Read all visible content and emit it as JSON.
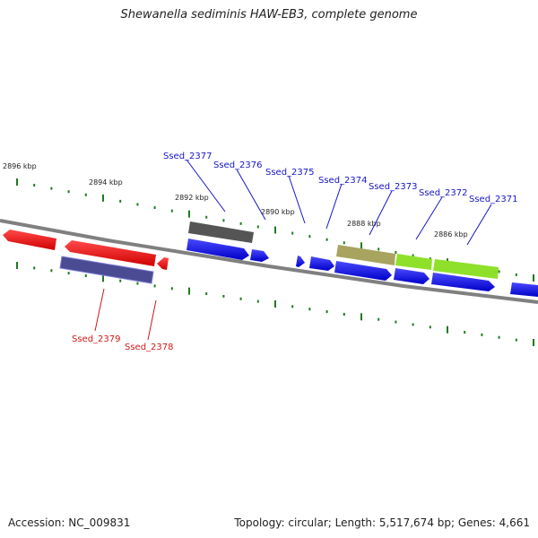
{
  "title": "Shewanella sediminis HAW-EB3, complete genome",
  "footer": {
    "accession": "Accession: NC_009831",
    "topology": "Topology: circular; Length: 5,517,674 bp; Genes: 4,661"
  },
  "colors": {
    "backbone": "#808080",
    "forward_gene": "#0a0ae6",
    "reverse_gene": "#ee1010",
    "label_forward": "#1515c8",
    "label_reverse": "#d01818",
    "tick": "#1f7a1f"
  },
  "kbp_labels": [
    "2896 kbp",
    "2894 kbp",
    "2892 kbp",
    "2890 kbp",
    "2888 kbp",
    "2886 kbp"
  ],
  "gene_labels": {
    "top": [
      "Ssed_2377",
      "Ssed_2376",
      "Ssed_2375",
      "Ssed_2374",
      "Ssed_2373",
      "Ssed_2372",
      "Ssed_2371"
    ],
    "bottom": [
      "Ssed_2379",
      "Ssed_2378"
    ]
  }
}
